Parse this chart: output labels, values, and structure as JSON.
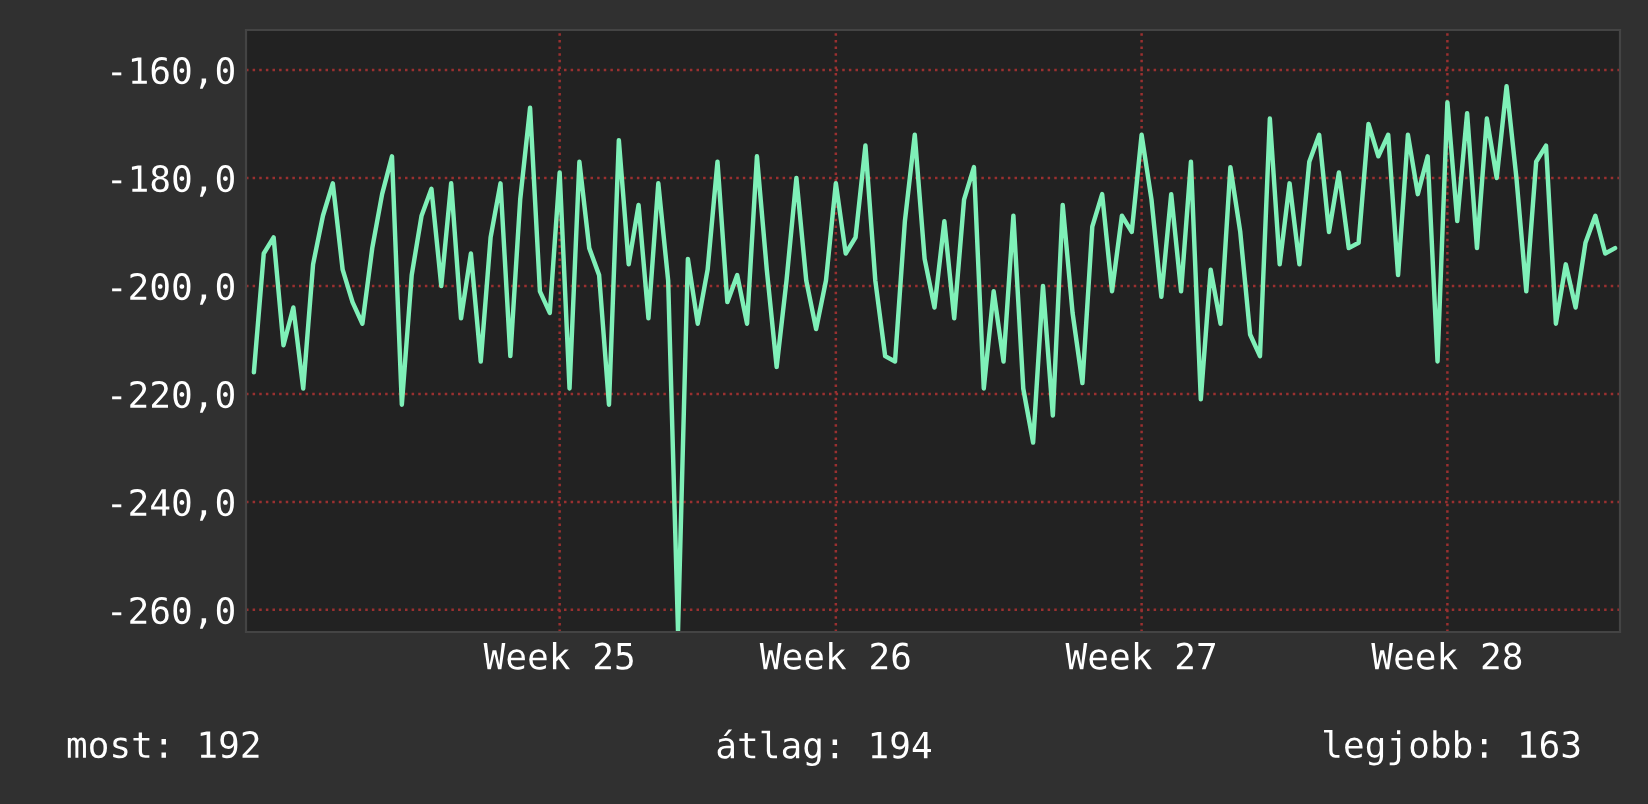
{
  "chart_data": {
    "type": "line",
    "categories": [
      null,
      null,
      null,
      null,
      null,
      null,
      null,
      null,
      null,
      null,
      null,
      null,
      null,
      null,
      null,
      null,
      null,
      null,
      null,
      null,
      null,
      null,
      null,
      null,
      null,
      null,
      null,
      null,
      null,
      null,
      null,
      "Week 25",
      null,
      null,
      null,
      null,
      null,
      null,
      null,
      null,
      null,
      null,
      null,
      null,
      null,
      null,
      null,
      null,
      null,
      null,
      null,
      null,
      null,
      null,
      null,
      null,
      null,
      null,
      null,
      "Week 26",
      null,
      null,
      null,
      null,
      null,
      null,
      null,
      null,
      null,
      null,
      null,
      null,
      null,
      null,
      null,
      null,
      null,
      null,
      null,
      null,
      null,
      null,
      null,
      null,
      null,
      null,
      null,
      null,
      null,
      null,
      "Week 27",
      null,
      null,
      null,
      null,
      null,
      null,
      null,
      null,
      null,
      null,
      null,
      null,
      null,
      null,
      null,
      null,
      null,
      null,
      null,
      null,
      null,
      null,
      null,
      null,
      null,
      null,
      null,
      null,
      null,
      null,
      "Week 28",
      null,
      null,
      null,
      null,
      null,
      null,
      null,
      null,
      null,
      null,
      null,
      null,
      null,
      null,
      null,
      null,
      null
    ],
    "series": [
      {
        "color": "#7ff0b8",
        "values": [
          -216,
          -194,
          -191,
          -211,
          -204,
          -219,
          -196,
          -187,
          -181,
          -197,
          -203,
          -207,
          -193,
          -183,
          -176,
          -222,
          -198,
          -187,
          -182,
          -200,
          -181,
          -206,
          -194,
          -214,
          -191,
          -181,
          -213,
          -184,
          -167,
          -201,
          -205,
          -179,
          -219,
          -177,
          -193,
          -198,
          -222,
          -173,
          -196,
          -185,
          -206,
          -181,
          -199,
          -264,
          -195,
          -207,
          -197,
          -177,
          -203,
          -198,
          -207,
          -176,
          -197,
          -215,
          -199,
          -180,
          -199,
          -208,
          -199,
          -181,
          -194,
          -191,
          -174,
          -199,
          -213,
          -214,
          -188,
          -172,
          -195,
          -204,
          -188,
          -206,
          -184,
          -178,
          -219,
          -201,
          -214,
          -187,
          -219,
          -229,
          -200,
          -224,
          -185,
          -205,
          -218,
          -189,
          -183,
          -201,
          -187,
          -190,
          -172,
          -184,
          -202,
          -183,
          -201,
          -177,
          -221,
          -197,
          -207,
          -178,
          -190,
          -209,
          -213,
          -169,
          -196,
          -181,
          -196,
          -177,
          -172,
          -190,
          -179,
          -193,
          -192,
          -170,
          -176,
          -172,
          -198,
          -172,
          -183,
          -176,
          -214,
          -166,
          -188,
          -168,
          -193,
          -169,
          -180,
          -163,
          -180,
          -201,
          -177,
          -174,
          -207,
          -196,
          -204,
          -192,
          -187,
          -194,
          -193
        ]
      }
    ],
    "ylim": [
      -264.1,
      -152.6
    ],
    "yticks": [
      {
        "value": -260,
        "label": "-260,0"
      },
      {
        "value": -240,
        "label": "-240,0"
      },
      {
        "value": -220,
        "label": "-220,0"
      },
      {
        "value": -200,
        "label": "-200,0"
      },
      {
        "value": -180,
        "label": "-180,0"
      },
      {
        "value": -160,
        "label": "-160,0"
      }
    ],
    "grid": true,
    "line_style": "solid",
    "annotations": [
      "most: 192",
      "átlag: 194",
      "legjobb: 163"
    ]
  }
}
